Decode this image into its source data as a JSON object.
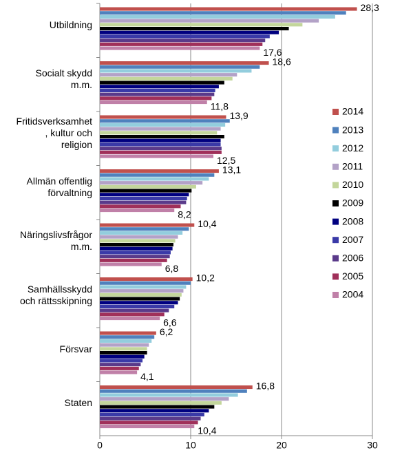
{
  "chart_data": {
    "type": "bar",
    "orientation": "horizontal",
    "categories": [
      "Utbildning",
      "Socialt skydd\nm.m.",
      "Fritidsverksamhet\n, kultur och\nreligion",
      "Allmän offentlig\nförvaltning",
      "Näringslivsfrågor\nm.m.",
      "Samhällsskydd\noch rättsskipning",
      "Försvar",
      "Staten"
    ],
    "series": [
      {
        "name": "2014",
        "color": "#c0504d",
        "values": [
          28.3,
          18.6,
          13.9,
          13.1,
          10.4,
          10.2,
          6.2,
          16.8
        ],
        "value_labels": [
          "28,3",
          "18,6",
          "13,9",
          "13,1",
          "10,4",
          "10,2",
          "6,2",
          "16,8"
        ]
      },
      {
        "name": "2013",
        "color": "#4f81bd",
        "values": [
          27.1,
          17.6,
          14.3,
          12.6,
          9.8,
          10.0,
          6.0,
          16.2
        ]
      },
      {
        "name": "2012",
        "color": "#93cddd",
        "values": [
          25.9,
          16.7,
          13.8,
          12.0,
          9.1,
          9.5,
          5.7,
          15.2
        ]
      },
      {
        "name": "2011",
        "color": "#b3a2c7",
        "values": [
          24.1,
          15.1,
          13.3,
          11.3,
          8.6,
          9.2,
          5.4,
          14.2
        ]
      },
      {
        "name": "2010",
        "color": "#c3d69b",
        "values": [
          22.3,
          14.6,
          12.9,
          10.6,
          8.3,
          9.0,
          5.2,
          13.4
        ]
      },
      {
        "name": "2009",
        "color": "#000000",
        "values": [
          20.8,
          13.7,
          13.7,
          10.1,
          8.1,
          8.8,
          5.2,
          12.6
        ]
      },
      {
        "name": "2008",
        "color": "#000080",
        "values": [
          19.7,
          13.1,
          13.3,
          9.8,
          8.0,
          8.6,
          4.9,
          12.0
        ]
      },
      {
        "name": "2007",
        "color": "#3a3aa8",
        "values": [
          18.7,
          12.7,
          13.3,
          9.6,
          7.8,
          8.2,
          4.7,
          11.5
        ]
      },
      {
        "name": "2006",
        "color": "#5a3a8a",
        "values": [
          18.2,
          12.6,
          13.4,
          9.5,
          7.7,
          7.6,
          4.5,
          11.1
        ]
      },
      {
        "name": "2005",
        "color": "#a0305a",
        "values": [
          17.9,
          12.3,
          13.4,
          8.9,
          7.4,
          7.1,
          4.3,
          10.8
        ]
      },
      {
        "name": "2004",
        "color": "#c080a8",
        "values": [
          17.6,
          11.8,
          12.5,
          8.2,
          6.8,
          6.6,
          4.1,
          10.4
        ],
        "value_labels": [
          "17,6",
          "11,8",
          "12,5",
          "8,2",
          "6,8",
          "6,6",
          "4,1",
          "10,4"
        ]
      }
    ],
    "xlim": [
      0,
      30
    ],
    "xticks": [
      0,
      10,
      20,
      30
    ],
    "grid": true,
    "legend": "right"
  }
}
